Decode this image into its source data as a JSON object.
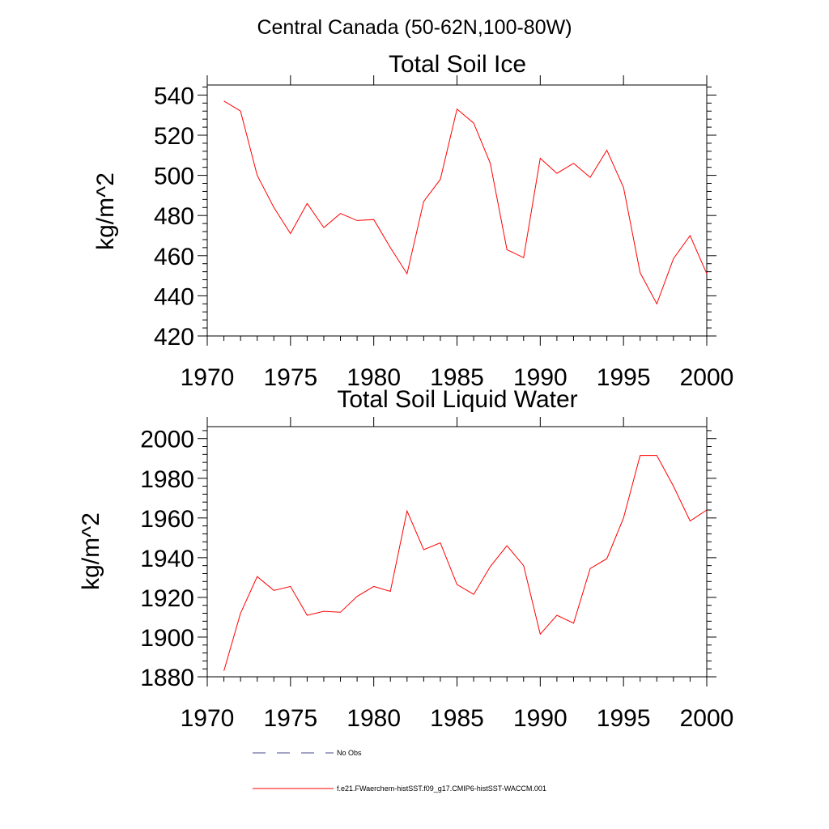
{
  "figure_title": "Central Canada (50-62N,100-80W)",
  "legend": [
    {
      "label": "No Obs",
      "style": "dashed",
      "color": "#4a4a8c"
    },
    {
      "label": "f.e21.FWaerchem-histSST.f09_g17.CMIP6-histSST-WACCM.001",
      "style": "solid",
      "color": "#ff0000"
    }
  ],
  "chart_data": [
    {
      "type": "line",
      "title": "Total Soil Ice",
      "xlabel": "",
      "ylabel": "kg/m^2",
      "xlim": [
        1970,
        2000
      ],
      "ylim": [
        420,
        545
      ],
      "xticks": [
        1970,
        1975,
        1980,
        1985,
        1990,
        1995,
        2000
      ],
      "yticks": [
        420,
        440,
        460,
        480,
        500,
        520,
        540
      ],
      "grid": false,
      "series": [
        {
          "name": "f.e21.FWaerchem-histSST.f09_g17.CMIP6-histSST-WACCM.001",
          "color": "#ff0000",
          "x": [
            1971,
            1972,
            1973,
            1974,
            1975,
            1976,
            1977,
            1978,
            1979,
            1980,
            1981,
            1982,
            1983,
            1984,
            1985,
            1986,
            1987,
            1988,
            1989,
            1990,
            1991,
            1992,
            1993,
            1994,
            1995,
            1996,
            1997,
            1998,
            1999,
            2000
          ],
          "y": [
            537,
            532,
            500,
            484,
            471,
            486,
            474,
            481,
            477.5,
            478,
            464,
            451,
            487,
            498,
            533,
            526,
            506,
            463,
            459,
            508.5,
            501,
            506,
            499,
            512.5,
            494,
            451.5,
            436,
            458.5,
            470,
            451
          ]
        }
      ]
    },
    {
      "type": "line",
      "title": "Total Soil Liquid Water",
      "xlabel": "",
      "ylabel": "kg/m^2",
      "xlim": [
        1970,
        2000
      ],
      "ylim": [
        1880,
        2006
      ],
      "xticks": [
        1970,
        1975,
        1980,
        1985,
        1990,
        1995,
        2000
      ],
      "yticks": [
        1880,
        1900,
        1920,
        1940,
        1960,
        1980,
        2000
      ],
      "grid": false,
      "series": [
        {
          "name": "f.e21.FWaerchem-histSST.f09_g17.CMIP6-histSST-WACCM.001",
          "color": "#ff0000",
          "x": [
            1971,
            1972,
            1973,
            1974,
            1975,
            1976,
            1977,
            1978,
            1979,
            1980,
            1981,
            1982,
            1983,
            1984,
            1985,
            1986,
            1987,
            1988,
            1989,
            1990,
            1991,
            1992,
            1993,
            1994,
            1995,
            1996,
            1997,
            1998,
            1999,
            2000
          ],
          "y": [
            1883,
            1912,
            1930.5,
            1923.5,
            1925.5,
            1911,
            1913,
            1912.5,
            1920.5,
            1925.5,
            1923,
            1963.5,
            1944,
            1947.5,
            1926.5,
            1921.5,
            1935.5,
            1946,
            1936,
            1901.5,
            1911,
            1907,
            1934.5,
            1939.5,
            1960,
            1991.5,
            1991.5,
            1976,
            1958.5,
            1964
          ]
        }
      ]
    }
  ]
}
